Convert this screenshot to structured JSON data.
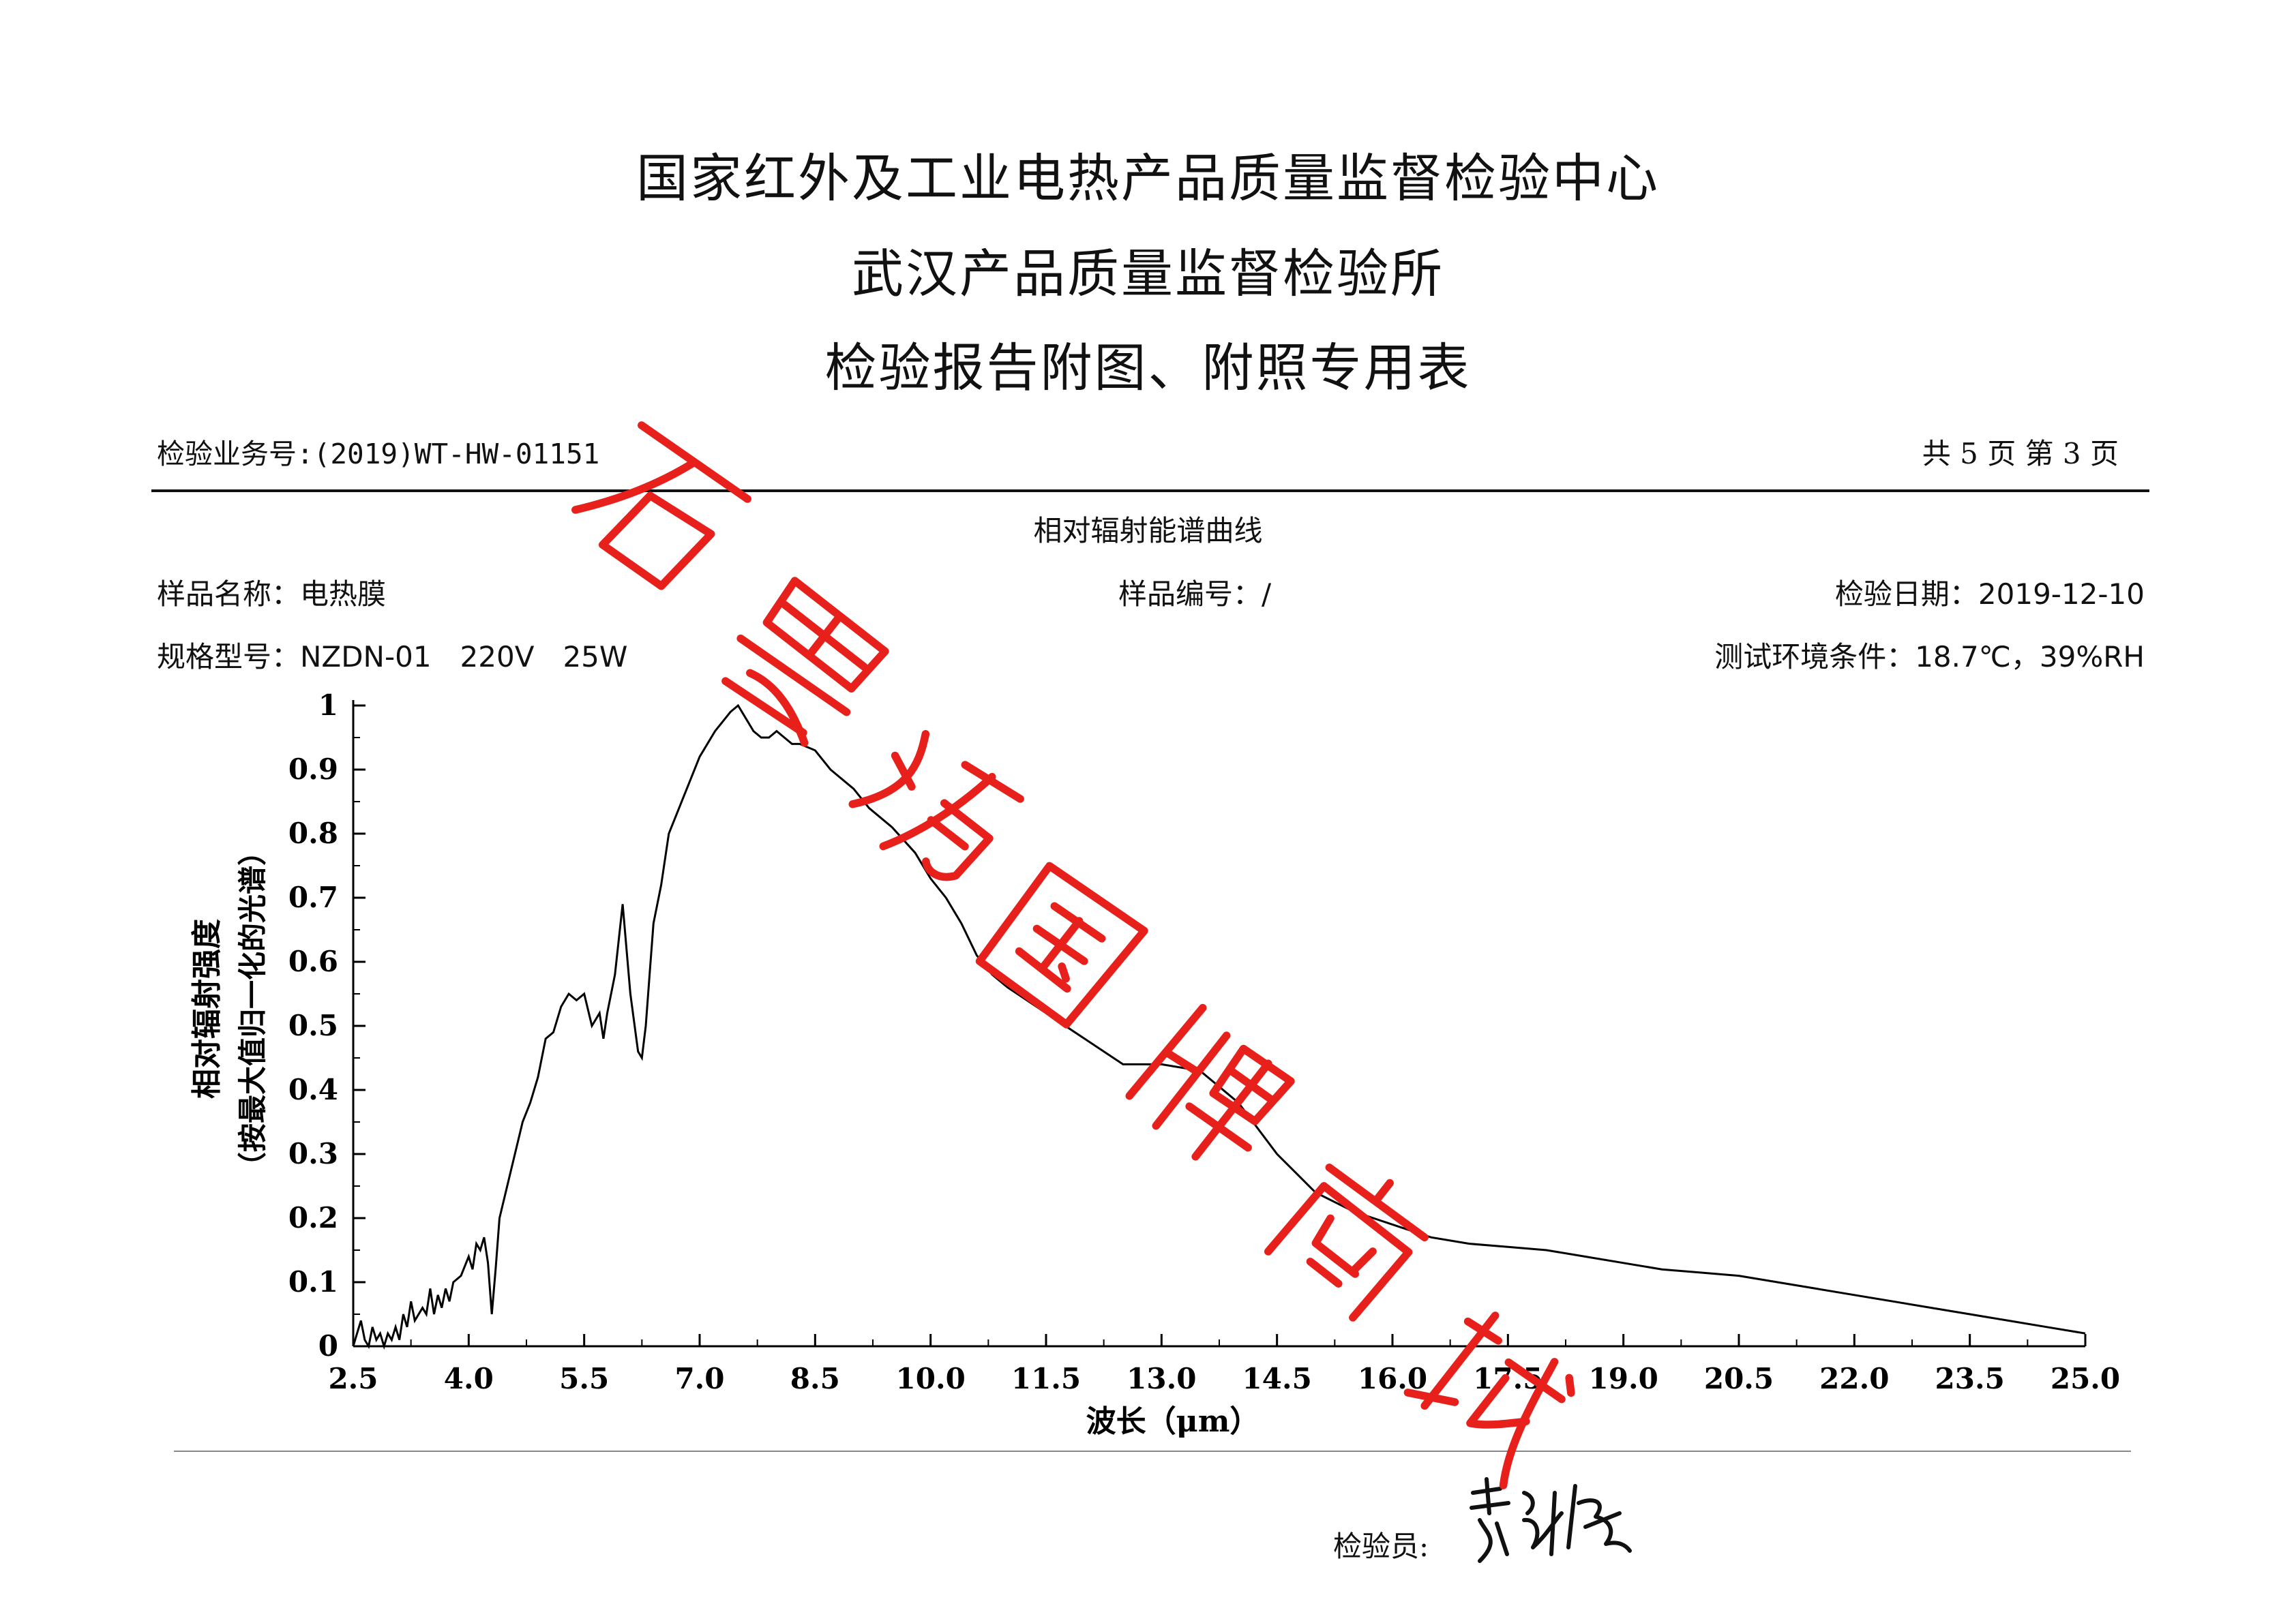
{
  "header": {
    "title_line1": "国家红外及工业电热产品质量监督检验中心",
    "title_line2": "武汉产品质量监督检验所",
    "title_line3": "检验报告附图、附照专用表"
  },
  "report": {
    "number_text": "检验业务号:(2019)WT-HW-01151",
    "page_text": "共 5 页 第 3 页",
    "section_title": "相对辐射能谱曲线",
    "sample_name_text": "样品名称：电热膜",
    "sample_no_text": "样品编号：/",
    "test_date_text": "检验日期：2019-12-10",
    "spec_text": "规格型号：NZDN-01　220V　25W",
    "environment_text": "测试环境条件：18.7℃，39%RH",
    "inspector_label": "检验员:"
  },
  "stamp": {
    "chars": [
      "石",
      "墨",
      "烯",
      "国",
      "牌",
      "商",
      "城"
    ],
    "color": "#e8201c"
  },
  "signature": {
    "color": "#111111"
  },
  "chart_data": {
    "type": "line",
    "title": "",
    "xlabel": "波长（μm）",
    "ylabel": "相对辐射强度",
    "ylabel_sub": "（按最大值归一化的光谱）",
    "xlim": [
      2.5,
      25.0
    ],
    "ylim": [
      0,
      1
    ],
    "x_ticks": [
      "2.5",
      "4.0",
      "5.5",
      "7.0",
      "8.5",
      "10.0",
      "11.5",
      "13.0",
      "14.5",
      "16.0",
      "17.5",
      "19.0",
      "20.5",
      "22.0",
      "23.5",
      "25.0"
    ],
    "y_ticks": [
      "0",
      "0.1",
      "0.2",
      "0.3",
      "0.4",
      "0.5",
      "0.6",
      "0.7",
      "0.8",
      "0.9",
      "1"
    ],
    "grid": false,
    "color": "#000000",
    "series": [
      {
        "x": [
          2.5,
          2.55,
          2.6,
          2.65,
          2.7,
          2.75,
          2.8,
          2.85,
          2.9,
          2.95,
          3.0,
          3.05,
          3.1,
          3.15,
          3.2,
          3.25,
          3.3,
          3.4,
          3.45,
          3.5,
          3.55,
          3.6,
          3.65,
          3.7,
          3.75,
          3.8,
          3.9,
          4.0,
          4.05,
          4.1,
          4.15,
          4.2,
          4.25,
          4.3,
          4.35,
          4.4,
          4.5,
          4.6,
          4.7,
          4.8,
          4.9,
          5.0,
          5.1,
          5.2,
          5.3,
          5.4,
          5.5,
          5.6,
          5.7,
          5.75,
          5.8,
          5.9,
          6.0,
          6.1,
          6.2,
          6.25,
          6.3,
          6.35,
          6.4,
          6.5,
          6.55,
          6.6,
          6.7,
          6.8,
          7.0,
          7.2,
          7.4,
          7.5,
          7.6,
          7.7,
          7.8,
          7.9,
          8.0,
          8.1,
          8.2,
          8.3,
          8.5,
          8.7,
          9.0,
          9.2,
          9.5,
          9.8,
          10.0,
          10.2,
          10.4,
          10.6,
          10.8,
          11.0,
          11.5,
          12.0,
          12.5,
          13.0,
          13.5,
          14.0,
          14.5,
          15.0,
          15.5,
          16.0,
          16.5,
          17.0,
          17.5,
          18.0,
          18.5,
          19.0,
          19.5,
          20.0,
          20.5,
          21.0,
          21.5,
          22.0,
          22.5,
          23.0,
          23.5,
          24.0,
          24.5,
          25.0
        ],
        "y": [
          0.0,
          0.02,
          0.04,
          0.01,
          0.0,
          0.03,
          0.01,
          0.02,
          0.0,
          0.02,
          0.01,
          0.03,
          0.01,
          0.05,
          0.03,
          0.07,
          0.04,
          0.06,
          0.05,
          0.09,
          0.05,
          0.08,
          0.06,
          0.09,
          0.07,
          0.1,
          0.11,
          0.14,
          0.12,
          0.16,
          0.15,
          0.17,
          0.13,
          0.05,
          0.12,
          0.2,
          0.25,
          0.3,
          0.35,
          0.38,
          0.42,
          0.48,
          0.49,
          0.53,
          0.55,
          0.54,
          0.55,
          0.5,
          0.52,
          0.48,
          0.52,
          0.58,
          0.69,
          0.55,
          0.46,
          0.45,
          0.5,
          0.58,
          0.66,
          0.72,
          0.76,
          0.8,
          0.83,
          0.86,
          0.92,
          0.96,
          0.99,
          1.0,
          0.98,
          0.96,
          0.95,
          0.95,
          0.96,
          0.95,
          0.94,
          0.94,
          0.93,
          0.9,
          0.87,
          0.84,
          0.81,
          0.77,
          0.73,
          0.7,
          0.66,
          0.61,
          0.58,
          0.56,
          0.52,
          0.48,
          0.44,
          0.44,
          0.43,
          0.38,
          0.3,
          0.24,
          0.21,
          0.19,
          0.17,
          0.16,
          0.155,
          0.15,
          0.14,
          0.13,
          0.12,
          0.115,
          0.11,
          0.1,
          0.09,
          0.08,
          0.07,
          0.06,
          0.05,
          0.04,
          0.03,
          0.02
        ]
      }
    ]
  }
}
